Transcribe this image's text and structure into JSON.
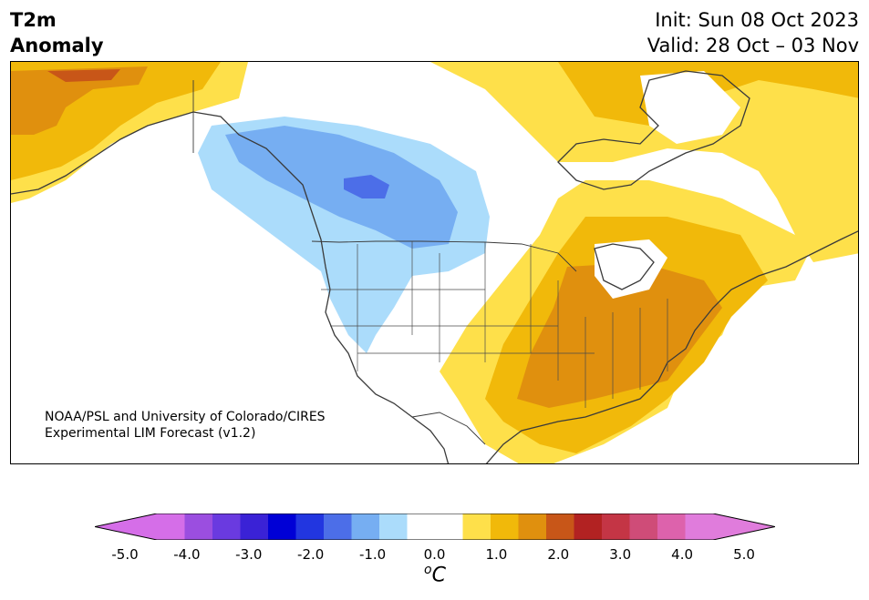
{
  "header": {
    "title_line1": "T2m",
    "title_line2": "Anomaly",
    "init": "Init: Sun 08 Oct 2023",
    "valid": "Valid: 28 Oct – 03 Nov"
  },
  "credit": {
    "line1": "NOAA/PSL and University of Colorado/CIRES",
    "line2": "Experimental LIM Forecast (v1.2)"
  },
  "colorbar": {
    "ticks": [
      "-5.0",
      "-4.0",
      "-3.0",
      "-2.0",
      "-1.0",
      "0.0",
      "1.0",
      "2.0",
      "3.0",
      "4.0",
      "5.0"
    ],
    "unit_base": "C",
    "unit_sup": "o",
    "colors": [
      "#d56ee8",
      "#9b4ee0",
      "#6a3ae0",
      "#3a22d6",
      "#0000d6",
      "#2236e0",
      "#4c6ee8",
      "#76aef2",
      "#abdcfb",
      "#ffffff",
      "#ffffff",
      "#fee04a",
      "#f1b90a",
      "#e0900e",
      "#c85618",
      "#b22222",
      "#c43545",
      "#cf4c78",
      "#dd62ac",
      "#e07cdc"
    ]
  },
  "map": {
    "region": "North America",
    "anomaly_colors": {
      "light_yellow": "#fee04a",
      "yellow": "#f1b90a",
      "orange": "#e0900e",
      "dark_orange": "#c85618",
      "red": "#b22222",
      "light_blue": "#abdcfb",
      "blue": "#76aef2",
      "medium_blue": "#4c6ee8"
    }
  }
}
